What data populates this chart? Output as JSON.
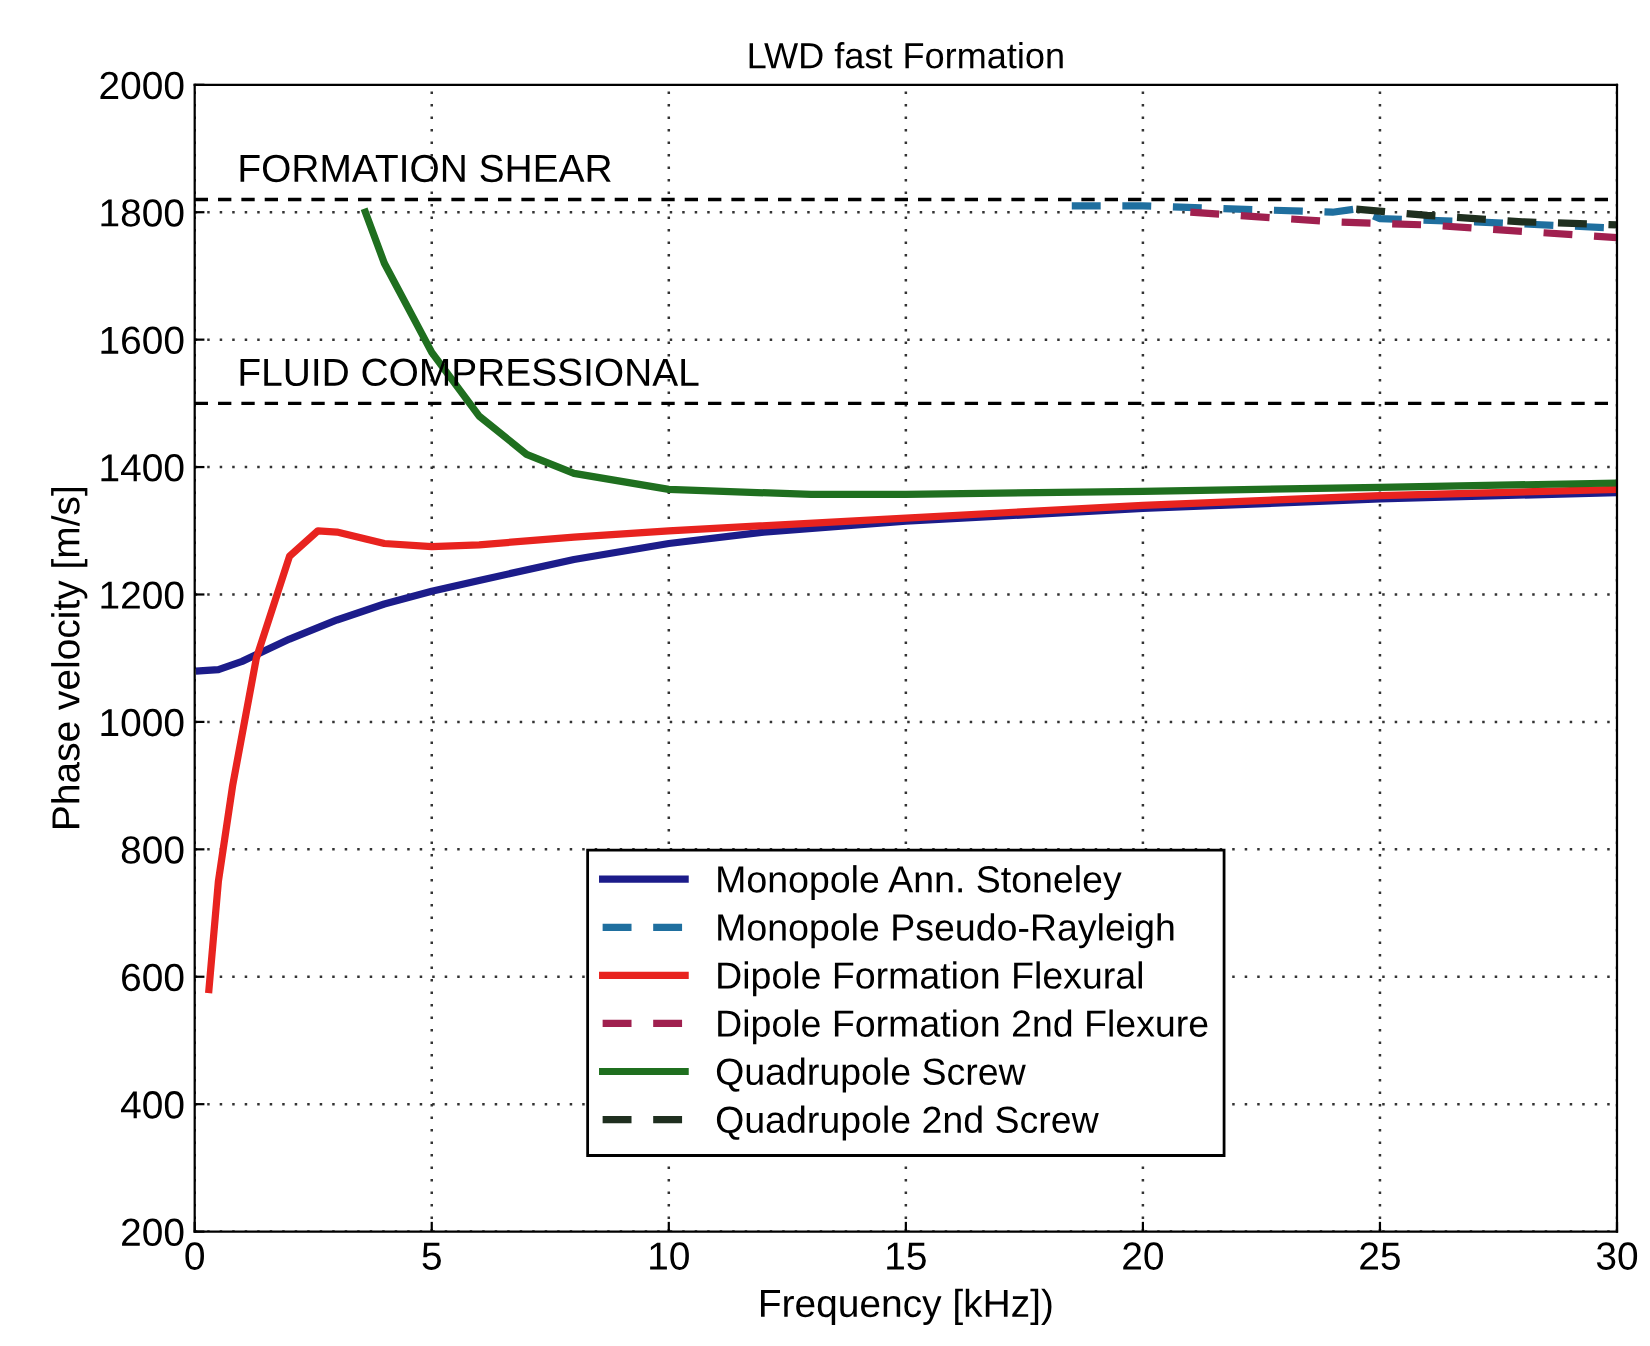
{
  "chart_data": {
    "type": "line",
    "title": "LWD fast Formation",
    "xlabel": "Frequency [kHz])",
    "ylabel": "Phase velocity [m/s]",
    "xlim": [
      0,
      30
    ],
    "ylim": [
      200,
      2000
    ],
    "xticks": [
      0,
      5,
      10,
      15,
      20,
      25,
      30
    ],
    "yticks": [
      200,
      400,
      600,
      800,
      1000,
      1200,
      1400,
      1600,
      1800,
      2000
    ],
    "grid": true,
    "legend": "bottom",
    "marker": "none",
    "series": [
      {
        "name": "Monopole Ann. Stoneley",
        "color": "#1c1c8a",
        "line_style": "solid",
        "x": [
          0.1,
          0.5,
          1,
          2,
          3,
          4,
          5,
          6,
          8,
          10,
          12,
          15,
          20,
          25,
          30
        ],
        "values": [
          1080,
          1082,
          1095,
          1130,
          1160,
          1185,
          1205,
          1222,
          1255,
          1280,
          1298,
          1315,
          1335,
          1350,
          1360
        ]
      },
      {
        "name": "Monopole Pseudo-Rayleigh",
        "color": "#1f6f9f",
        "line_style": "dashed",
        "x": [
          18.5,
          20,
          22,
          24,
          24.5,
          25,
          27,
          30
        ],
        "values": [
          1810,
          1810,
          1805,
          1800,
          1805,
          1790,
          1785,
          1775
        ]
      },
      {
        "name": "Dipole Formation Flexural",
        "color": "#e8231f",
        "line_style": "solid",
        "x": [
          0.3,
          0.5,
          0.8,
          1.3,
          2,
          2.6,
          3,
          4,
          5,
          6,
          8,
          10,
          15,
          20,
          25,
          30
        ],
        "values": [
          580,
          750,
          900,
          1100,
          1260,
          1300,
          1298,
          1280,
          1275,
          1278,
          1290,
          1300,
          1320,
          1340,
          1355,
          1365
        ]
      },
      {
        "name": "Dipole Formation 2nd Flexure",
        "color": "#a0204f",
        "line_style": "dashed",
        "x": [
          21,
          22,
          24,
          26,
          28,
          30
        ],
        "values": [
          1800,
          1795,
          1785,
          1780,
          1770,
          1760
        ]
      },
      {
        "name": "Quadrupole Screw",
        "color": "#1f6f1f",
        "line_style": "solid",
        "x": [
          3.6,
          4,
          5,
          6,
          7,
          8,
          10,
          13,
          15,
          20,
          25,
          30
        ],
        "values": [
          1800,
          1720,
          1580,
          1480,
          1420,
          1390,
          1365,
          1357,
          1357,
          1362,
          1368,
          1375
        ]
      },
      {
        "name": "Quadrupole 2nd Screw",
        "color": "#1f2f1f",
        "line_style": "dashed",
        "x": [
          24.5,
          26,
          28,
          30
        ],
        "values": [
          1805,
          1795,
          1785,
          1780
        ]
      }
    ],
    "ref_lines": [
      {
        "axis": "y",
        "value": 1820,
        "label": "FORMATION SHEAR",
        "color": "#000000",
        "line_style": "dashed"
      },
      {
        "axis": "y",
        "value": 1500,
        "label": "FLUID COMPRESSIONAL",
        "color": "#000000",
        "line_style": "dashed"
      }
    ]
  }
}
